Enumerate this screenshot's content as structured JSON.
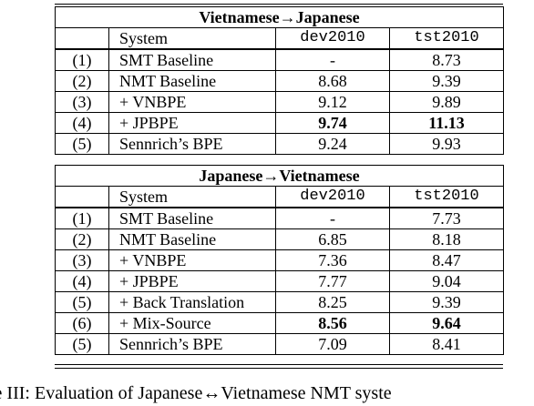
{
  "tables": [
    {
      "title": "Vietnamese→Japanese",
      "headers": [
        "",
        "System",
        "dev2010",
        "tst2010"
      ],
      "rows": [
        {
          "num": "(1)",
          "system": "SMT Baseline",
          "dev": "-",
          "tst": "8.73",
          "dev_bold": false,
          "tst_bold": false
        },
        {
          "num": "(2)",
          "system": "NMT Baseline",
          "dev": "8.68",
          "tst": "9.39",
          "dev_bold": false,
          "tst_bold": false
        },
        {
          "num": "(3)",
          "system": "+ VNBPE",
          "dev": "9.12",
          "tst": "9.89",
          "dev_bold": false,
          "tst_bold": false
        },
        {
          "num": "(4)",
          "system": "+ JPBPE",
          "dev": "9.74",
          "tst": "11.13",
          "dev_bold": true,
          "tst_bold": true
        },
        {
          "num": "(5)",
          "system": "Sennrich’s BPE",
          "dev": "9.24",
          "tst": "9.93",
          "dev_bold": false,
          "tst_bold": false
        }
      ]
    },
    {
      "title": "Japanese→Vietnamese",
      "headers": [
        "",
        "System",
        "dev2010",
        "tst2010"
      ],
      "rows": [
        {
          "num": "(1)",
          "system": "SMT Baseline",
          "dev": "-",
          "tst": "7.73",
          "dev_bold": false,
          "tst_bold": false
        },
        {
          "num": "(2)",
          "system": "NMT Baseline",
          "dev": "6.85",
          "tst": "8.18",
          "dev_bold": false,
          "tst_bold": false
        },
        {
          "num": "(3)",
          "system": "+ VNBPE",
          "dev": "7.36",
          "tst": "8.47",
          "dev_bold": false,
          "tst_bold": false
        },
        {
          "num": "(4)",
          "system": "+ JPBPE",
          "dev": "7.77",
          "tst": "9.04",
          "dev_bold": false,
          "tst_bold": false
        },
        {
          "num": "(5)",
          "system": "+ Back Translation",
          "dev": "8.25",
          "tst": "9.39",
          "dev_bold": false,
          "tst_bold": false
        },
        {
          "num": "(6)",
          "system": "+ Mix-Source",
          "dev": "8.56",
          "tst": "9.64",
          "dev_bold": true,
          "tst_bold": true
        },
        {
          "num": "(5)",
          "system": "Sennrich’s BPE",
          "dev": "7.09",
          "tst": "8.41",
          "dev_bold": false,
          "tst_bold": false
        }
      ]
    }
  ],
  "caption": "ble III:  Evaluation of Japanese↔Vietnamese NMT syste"
}
